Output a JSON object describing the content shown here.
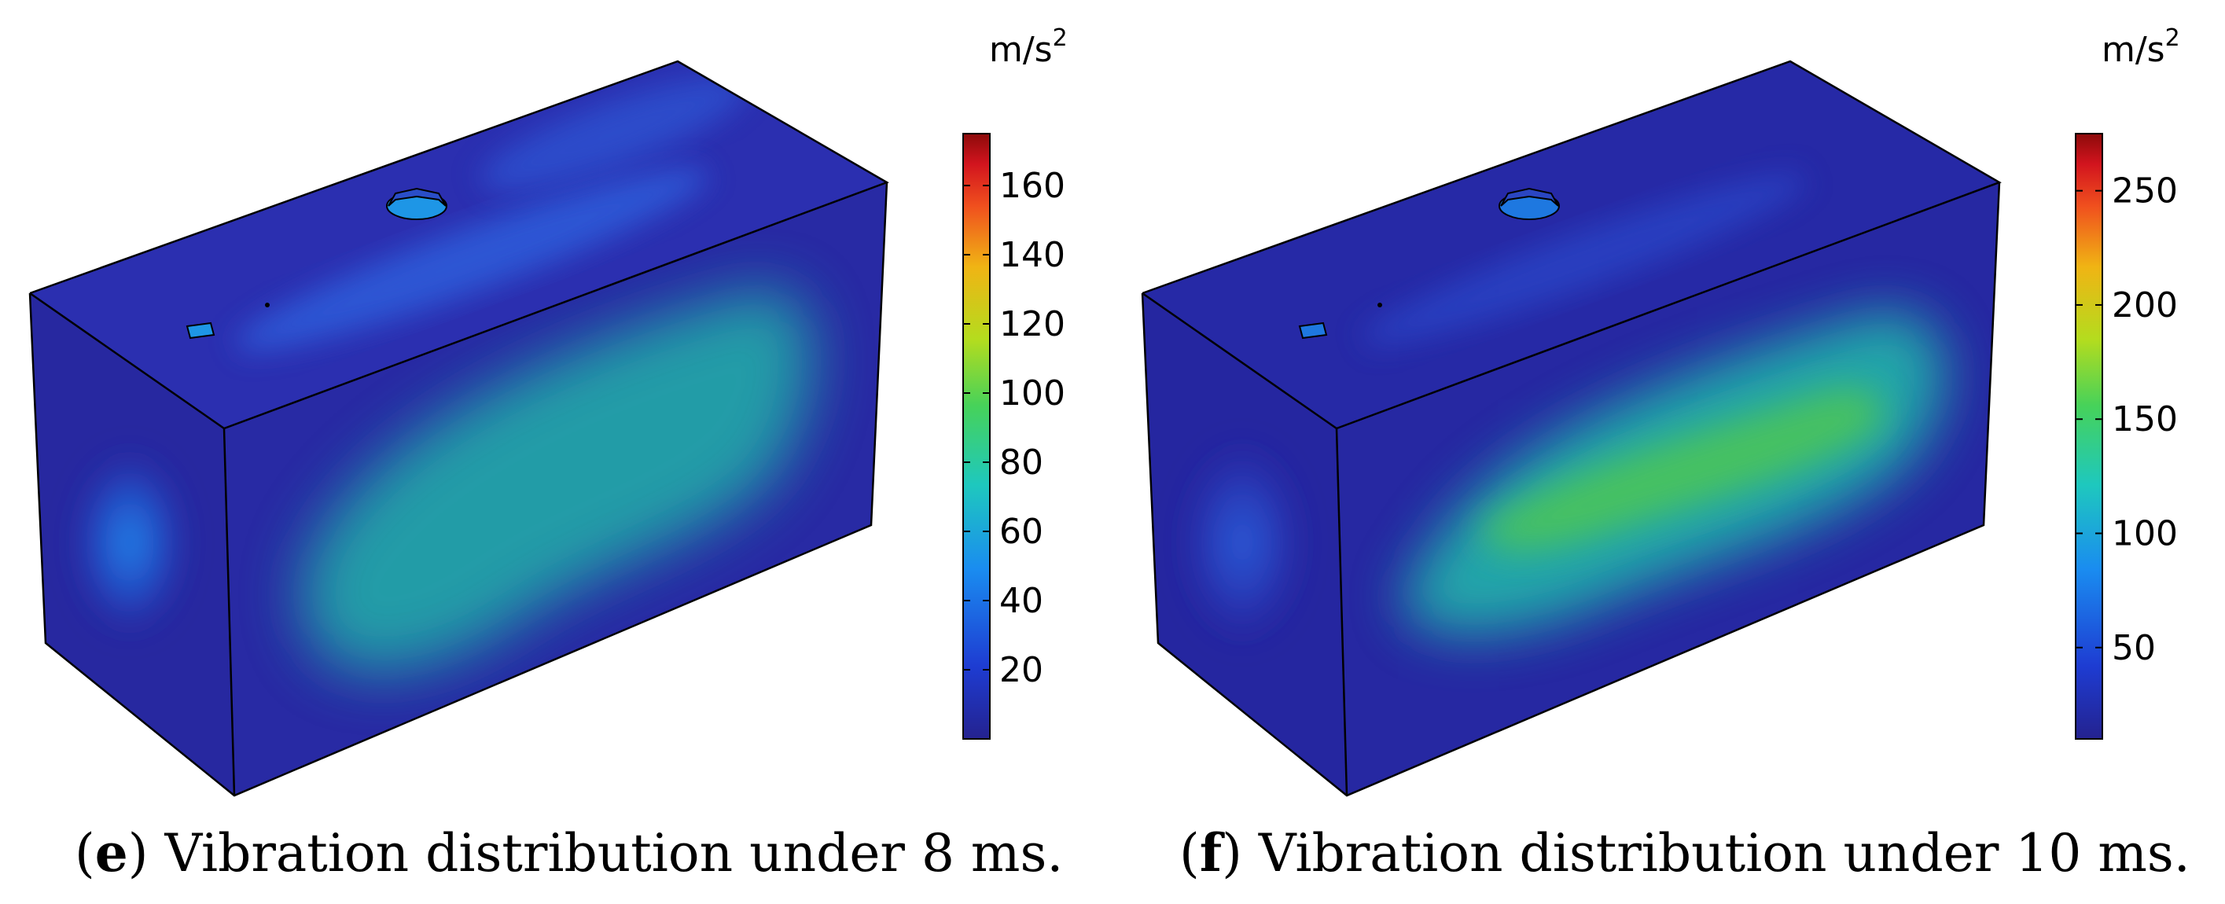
{
  "panels": [
    {
      "id": "e",
      "caption_letter": "e",
      "caption_text": "Vibration distribution under 8 ms.",
      "colorbar": {
        "unit": "m/s",
        "unit_exponent": "2",
        "min": 0,
        "max": 175,
        "ticks": [
          20,
          40,
          60,
          80,
          100,
          120,
          140,
          160
        ]
      }
    },
    {
      "id": "f",
      "caption_letter": "f",
      "caption_text": "Vibration distribution under 10 ms.",
      "colorbar": {
        "unit": "m/s",
        "unit_exponent": "2",
        "min": 10,
        "max": 275,
        "ticks": [
          50,
          100,
          150,
          200,
          250
        ]
      }
    }
  ],
  "colormap": [
    "#24228f",
    "#1e3cd2",
    "#1a8cf0",
    "#1ec8be",
    "#46d25a",
    "#b4dc1e",
    "#f0b414",
    "#f0501e",
    "#d2141e",
    "#8c0a0a"
  ],
  "surface_colors": {
    "base": "#2a2aa6",
    "edge": "#000000"
  }
}
